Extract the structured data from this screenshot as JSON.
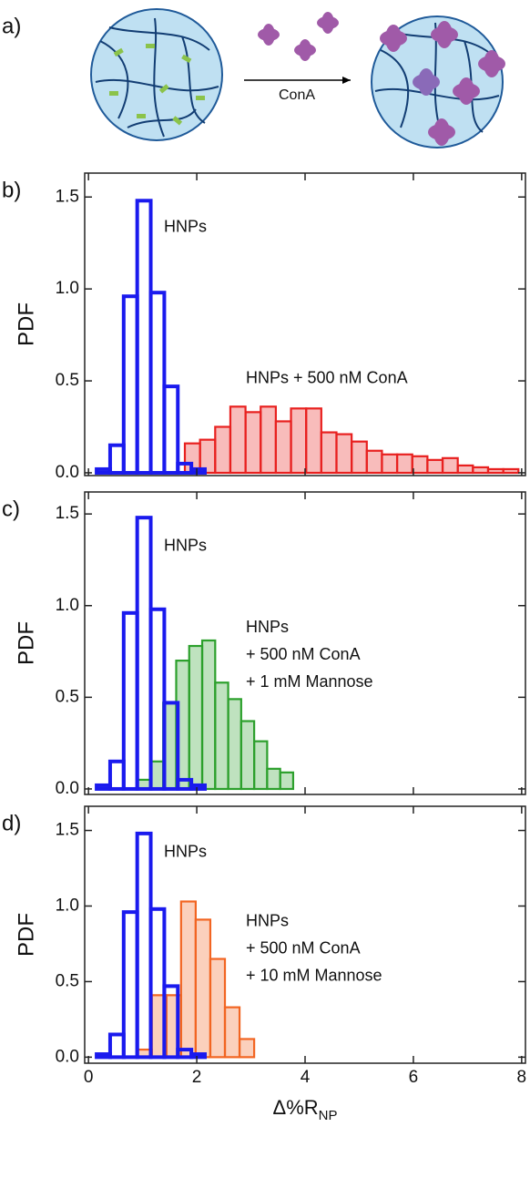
{
  "panel_a": {
    "label": "a)",
    "arrow_label": "ConA"
  },
  "chart_data": [
    {
      "type": "histogram",
      "panel_label": "b)",
      "ylabel": "PDF",
      "xlim": [
        -0.07,
        8.07
      ],
      "xticks": [
        0,
        2,
        4,
        6,
        8
      ],
      "show_xtick_labels": false,
      "ylim": [
        -0.015,
        1.63
      ],
      "yticks": [
        {
          "value": 0,
          "label": "0.0"
        },
        0.5,
        {
          "value": 1,
          "label": "1.0"
        },
        1.5
      ],
      "series": [
        {
          "name": "HNPs",
          "color": "#1a1aee",
          "filled": false,
          "bins": [
            0.15,
            0.4,
            0.65,
            0.9,
            1.15,
            1.4,
            1.65,
            1.9,
            2.15
          ],
          "values": [
            0.02,
            0.15,
            0.96,
            1.48,
            0.98,
            0.47,
            0.05,
            0.02
          ]
        },
        {
          "name": "HNPs + 500 nM ConA",
          "color": "#e8201f",
          "filled": true,
          "bins": [
            1.78,
            2.06,
            2.34,
            2.62,
            2.9,
            3.18,
            3.46,
            3.74,
            4.02,
            4.3,
            4.58,
            4.86,
            5.14,
            5.42,
            5.7,
            5.98,
            6.26,
            6.54,
            6.82,
            7.1,
            7.38,
            7.66,
            7.94
          ],
          "values": [
            0.16,
            0.18,
            0.25,
            0.36,
            0.33,
            0.36,
            0.28,
            0.35,
            0.35,
            0.22,
            0.21,
            0.17,
            0.12,
            0.1,
            0.1,
            0.09,
            0.07,
            0.08,
            0.04,
            0.03,
            0.02,
            0.02
          ]
        }
      ]
    },
    {
      "type": "histogram",
      "panel_label": "c)",
      "ylabel": "PDF",
      "xlim": [
        -0.07,
        8.07
      ],
      "xticks": [
        0,
        2,
        4,
        6,
        8
      ],
      "show_xtick_labels": false,
      "ylim": [
        -0.03,
        1.62
      ],
      "yticks": [
        {
          "value": 0,
          "label": "0.0"
        },
        0.5,
        {
          "value": 1,
          "label": "1.0"
        },
        1.5
      ],
      "series": [
        {
          "name": "HNPs",
          "color": "#1a1aee",
          "filled": false,
          "bins": [
            0.15,
            0.4,
            0.65,
            0.9,
            1.15,
            1.4,
            1.65,
            1.9,
            2.15
          ],
          "values": [
            0.02,
            0.15,
            0.96,
            1.48,
            0.98,
            0.47,
            0.05,
            0.02
          ]
        },
        {
          "name": [
            "HNPs",
            "+ 500 nM ConA",
            "+ 1 mM Mannose"
          ],
          "color": "#2ca02c",
          "filled": true,
          "bins": [
            0.9,
            1.14,
            1.38,
            1.62,
            1.86,
            2.1,
            2.34,
            2.58,
            2.82,
            3.06,
            3.3,
            3.54,
            3.78
          ],
          "values": [
            0.05,
            0.15,
            0.47,
            0.7,
            0.78,
            0.81,
            0.58,
            0.49,
            0.37,
            0.26,
            0.11,
            0.09
          ]
        }
      ]
    },
    {
      "type": "histogram",
      "panel_label": "d)",
      "ylabel": "PDF",
      "xlabel": "Δ%R",
      "xlabel_sub": "NP",
      "xlim": [
        -0.07,
        8.07
      ],
      "xticks": [
        0,
        2,
        4,
        6,
        8
      ],
      "show_xtick_labels": true,
      "ylim": [
        -0.04,
        1.66
      ],
      "yticks": [
        {
          "value": 0,
          "label": "0.0"
        },
        0.5,
        {
          "value": 1,
          "label": "1.0"
        },
        1.5
      ],
      "series": [
        {
          "name": "HNPs",
          "color": "#1a1aee",
          "filled": false,
          "bins": [
            0.15,
            0.4,
            0.65,
            0.9,
            1.15,
            1.4,
            1.65,
            1.9,
            2.15
          ],
          "values": [
            0.02,
            0.15,
            0.96,
            1.48,
            0.98,
            0.47,
            0.05,
            0.02
          ]
        },
        {
          "name": [
            "HNPs",
            "+ 500 nM ConA",
            "+ 10 mM Mannose"
          ],
          "color": "#f26522",
          "filled": true,
          "bins": [
            0.9,
            1.17,
            1.44,
            1.71,
            1.98,
            2.25,
            2.52,
            2.79,
            3.06
          ],
          "values": [
            0.05,
            0.41,
            0.41,
            1.03,
            0.91,
            0.65,
            0.33,
            0.12
          ]
        }
      ]
    }
  ]
}
